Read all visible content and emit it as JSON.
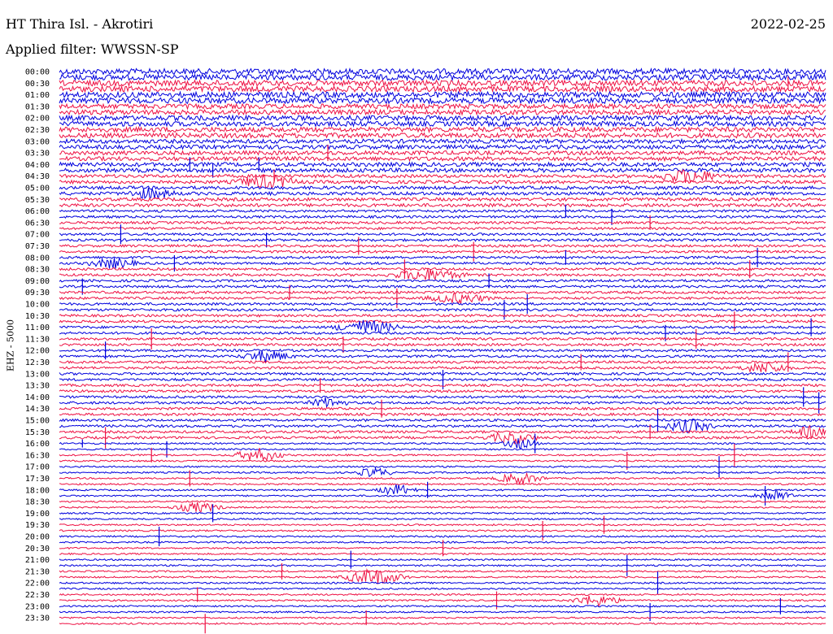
{
  "header": {
    "station": "HT Thira Isl. - Akrotiri",
    "date": "2022-02-25",
    "filter": "Applied filter: WWSSN-SP"
  },
  "chart_data": {
    "type": "line",
    "title": "HT Thira Isl. - Akrotiri",
    "ylabel": "EHZ - 5000",
    "tick_labels": [
      "00:00",
      "00:30",
      "01:00",
      "01:30",
      "02:00",
      "02:30",
      "03:00",
      "03:30",
      "04:00",
      "04:30",
      "05:00",
      "05:30",
      "06:00",
      "06:30",
      "07:00",
      "07:30",
      "08:00",
      "08:30",
      "09:00",
      "09:30",
      "10:00",
      "10:30",
      "11:00",
      "11:30",
      "12:00",
      "12:30",
      "13:00",
      "13:30",
      "14:00",
      "14:30",
      "15:00",
      "15:30",
      "16:00",
      "16:30",
      "17:00",
      "17:30",
      "18:00",
      "18:30",
      "19:00",
      "19:30",
      "20:00",
      "20:30",
      "21:00",
      "21:30",
      "22:00",
      "22:30",
      "23:00",
      "23:30"
    ],
    "trace_minutes": 15,
    "colors": [
      "#0000dd",
      "#ee1144"
    ],
    "noise_level": [
      7,
      7,
      7,
      7,
      7,
      7,
      6,
      6,
      6,
      6,
      6,
      6,
      5,
      5,
      5,
      5,
      5,
      5,
      4,
      4,
      4,
      4,
      4,
      4,
      3,
      3,
      3,
      3,
      3,
      3,
      3,
      3,
      3,
      3,
      3,
      3,
      3,
      3,
      3,
      3,
      3,
      3,
      3,
      3,
      3,
      3,
      3,
      3,
      3,
      3,
      3,
      3,
      3,
      3,
      3,
      3,
      3,
      3,
      3,
      3,
      3,
      3,
      3,
      3,
      2,
      2,
      2,
      2,
      2,
      2,
      2,
      2,
      2,
      2,
      2,
      2,
      2,
      2,
      2,
      2,
      2,
      2,
      2,
      2,
      2,
      2,
      2,
      2,
      2,
      2,
      2,
      2,
      2,
      2,
      2,
      2
    ],
    "events": [
      [
        60,
        0.78,
        14
      ],
      [
        66,
        0.12,
        9
      ],
      [
        64,
        0.03,
        5
      ],
      [
        14,
        0.35,
        10
      ],
      [
        2,
        0.95,
        8
      ],
      [
        16,
        0.17,
        9
      ],
      [
        16,
        0.26,
        9
      ],
      [
        17,
        0.2,
        9
      ],
      [
        18,
        0.28,
        8
      ],
      [
        24,
        0.66,
        8
      ],
      [
        25,
        0.72,
        10
      ],
      [
        26,
        0.77,
        9
      ],
      [
        28,
        0.08,
        12
      ],
      [
        29,
        0.27,
        9
      ],
      [
        30,
        0.39,
        11
      ],
      [
        31,
        0.54,
        12
      ],
      [
        32,
        0.66,
        9
      ],
      [
        33,
        0.15,
        10
      ],
      [
        34,
        0.45,
        12
      ],
      [
        36,
        0.56,
        9
      ],
      [
        37,
        0.03,
        10
      ],
      [
        38,
        0.3,
        9
      ],
      [
        40,
        0.61,
        12
      ],
      [
        43,
        0.88,
        12
      ],
      [
        44,
        0.98,
        11
      ],
      [
        45,
        0.79,
        10
      ],
      [
        46,
        0.83,
        12
      ],
      [
        46,
        0.12,
        13
      ],
      [
        47,
        0.37,
        10
      ],
      [
        48,
        0.06,
        11
      ],
      [
        50,
        0.68,
        10
      ],
      [
        50,
        0.95,
        12
      ],
      [
        53,
        0.5,
        12
      ],
      [
        54,
        0.34,
        9
      ],
      [
        58,
        0.42,
        11
      ],
      [
        62,
        0.77,
        9
      ],
      [
        63,
        0.06,
        13
      ],
      [
        64,
        0.62,
        12
      ],
      [
        65,
        0.14,
        10
      ],
      [
        66,
        0.88,
        14
      ],
      [
        67,
        0.74,
        11
      ],
      [
        68,
        0.86,
        13
      ],
      [
        70,
        0.17,
        10
      ],
      [
        72,
        0.48,
        10
      ],
      [
        73,
        0.92,
        12
      ],
      [
        76,
        0.2,
        11
      ],
      [
        78,
        0.71,
        11
      ],
      [
        79,
        0.63,
        12
      ],
      [
        80,
        0.13,
        12
      ],
      [
        82,
        0.5,
        10
      ],
      [
        84,
        0.38,
        11
      ],
      [
        85,
        0.74,
        13
      ],
      [
        86,
        0.29,
        10
      ],
      [
        88,
        0.78,
        14
      ],
      [
        90,
        0.18,
        9
      ],
      [
        91,
        0.57,
        11
      ],
      [
        92,
        0.94,
        10
      ],
      [
        93,
        0.77,
        11
      ],
      [
        94,
        0.4,
        9
      ],
      [
        95,
        0.19,
        12
      ],
      [
        32,
        0.91,
        12
      ],
      [
        34,
        0.9,
        11
      ],
      [
        39,
        0.44,
        12
      ],
      [
        41,
        0.58,
        12
      ],
      [
        56,
        0.97,
        12
      ],
      [
        57,
        0.99,
        13
      ]
    ],
    "bursts": [
      [
        19,
        0.27,
        0.05,
        8
      ],
      [
        18,
        0.82,
        0.05,
        8
      ],
      [
        21,
        0.12,
        0.04,
        6
      ],
      [
        33,
        0.07,
        0.04,
        6
      ],
      [
        35,
        0.48,
        0.06,
        7
      ],
      [
        39,
        0.52,
        0.05,
        6
      ],
      [
        44,
        0.4,
        0.05,
        9
      ],
      [
        49,
        0.27,
        0.04,
        7
      ],
      [
        51,
        0.92,
        0.04,
        7
      ],
      [
        57,
        0.35,
        0.03,
        6
      ],
      [
        61,
        0.82,
        0.04,
        8
      ],
      [
        63,
        0.59,
        0.04,
        7
      ],
      [
        62,
        0.98,
        0.03,
        7
      ],
      [
        64,
        0.6,
        0.03,
        6
      ],
      [
        69,
        0.41,
        0.03,
        6
      ],
      [
        66,
        0.26,
        0.04,
        8
      ],
      [
        70,
        0.6,
        0.04,
        7
      ],
      [
        72,
        0.44,
        0.03,
        7
      ],
      [
        73,
        0.93,
        0.03,
        9
      ],
      [
        75,
        0.18,
        0.04,
        6
      ],
      [
        87,
        0.41,
        0.05,
        10
      ],
      [
        91,
        0.7,
        0.04,
        7
      ]
    ]
  }
}
